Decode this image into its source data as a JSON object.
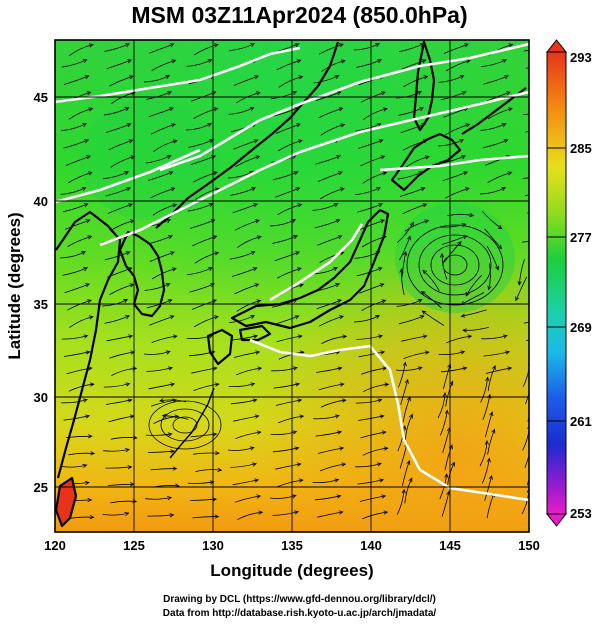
{
  "title": "MSM 03Z11Apr2024 (850.0hPa)",
  "map": {
    "lon_range": [
      120,
      150
    ],
    "lat_range": [
      22.5,
      48
    ],
    "x_ticks": [
      "120",
      "125",
      "130",
      "135",
      "140",
      "145",
      "150"
    ],
    "y_ticks": [
      "25",
      "30",
      "35",
      "40",
      "45"
    ],
    "x_label": "Longitude (degrees)",
    "y_label": "Latitude  (degrees)",
    "grid": true,
    "field": "temperature (shaded) with wind streamlines"
  },
  "colorbar": {
    "min": 253,
    "max": 293,
    "tick_labels": [
      "293",
      "285",
      "277",
      "269",
      "261",
      "253"
    ],
    "tick_values": [
      293,
      285,
      277,
      269,
      261,
      253
    ]
  },
  "footer": {
    "line1": "Drawing by DCL (https://www.gfd-dennou.org/library/dcl/)",
    "line2": "Data from http://database.rish.kyoto-u.ac.jp/arch/jmadata/"
  }
}
